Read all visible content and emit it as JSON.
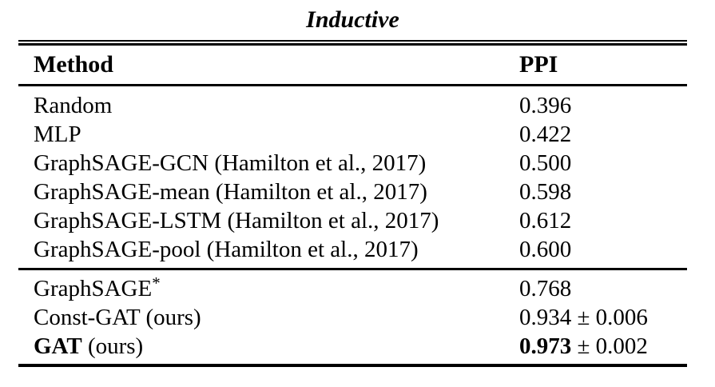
{
  "title": "Inductive",
  "table": {
    "headers": {
      "method": "Method",
      "value": "PPI"
    },
    "sections": [
      {
        "rows": [
          {
            "method": [
              {
                "t": "Random"
              }
            ],
            "value": [
              {
                "t": "0.396"
              }
            ]
          },
          {
            "method": [
              {
                "t": "MLP"
              }
            ],
            "value": [
              {
                "t": "0.422"
              }
            ]
          },
          {
            "method": [
              {
                "t": "GraphSAGE-GCN (Hamilton et al., 2017)"
              }
            ],
            "value": [
              {
                "t": "0.500"
              }
            ]
          },
          {
            "method": [
              {
                "t": "GraphSAGE-mean (Hamilton et al., 2017)"
              }
            ],
            "value": [
              {
                "t": "0.598"
              }
            ]
          },
          {
            "method": [
              {
                "t": "GraphSAGE-LSTM (Hamilton et al., 2017)"
              }
            ],
            "value": [
              {
                "t": "0.612"
              }
            ]
          },
          {
            "method": [
              {
                "t": "GraphSAGE-pool (Hamilton et al., 2017)"
              }
            ],
            "value": [
              {
                "t": "0.600"
              }
            ]
          }
        ]
      },
      {
        "rows": [
          {
            "method": [
              {
                "t": "GraphSAGE"
              },
              {
                "t": "*",
                "sup": true
              }
            ],
            "value": [
              {
                "t": "0.768"
              }
            ]
          },
          {
            "method": [
              {
                "t": "Const-GAT (ours)"
              }
            ],
            "value": [
              {
                "t": "0.934 ± 0.006"
              }
            ]
          },
          {
            "method": [
              {
                "t": "GAT",
                "b": true
              },
              {
                "t": " (ours)"
              }
            ],
            "value": [
              {
                "t": "0.973",
                "b": true
              },
              {
                "t": " ± 0.002"
              }
            ]
          }
        ]
      }
    ]
  },
  "colors": {
    "text": "#000000",
    "background": "#ffffff",
    "rule": "#000000"
  }
}
